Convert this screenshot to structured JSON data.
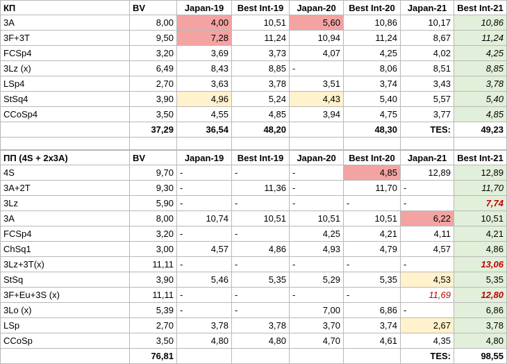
{
  "table1": {
    "header": [
      "КП",
      "BV",
      "Japan-19",
      "Best Int-19",
      "Japan-20",
      "Best Int-20",
      "Japan-21",
      "Best Int-21"
    ],
    "rows": [
      [
        "3A",
        "8,00",
        "4,00",
        "10,51",
        "5,60",
        "10,86",
        "10,17",
        "10,86"
      ],
      [
        "3F+3T",
        "9,50",
        "7,28",
        "11,24",
        "10,94",
        "11,24",
        "8,67",
        "11,24"
      ],
      [
        "FCSp4",
        "3,20",
        "3,69",
        "3,73",
        "4,07",
        "4,25",
        "4,02",
        "4,25"
      ],
      [
        "3Lz (x)",
        "6,49",
        "8,43",
        "8,85",
        "-",
        "8,06",
        "8,51",
        "8,85"
      ],
      [
        "LSp4",
        "2,70",
        "3,63",
        "3,78",
        "3,51",
        "3,74",
        "3,43",
        "3,78"
      ],
      [
        "StSq4",
        "3,90",
        "4,96",
        "5,24",
        "4,43",
        "5,40",
        "5,57",
        "5,40"
      ],
      [
        "CCoSp4",
        "3,50",
        "4,55",
        "4,85",
        "3,94",
        "4,75",
        "3,77",
        "4,85"
      ]
    ],
    "totals": [
      "",
      "37,29",
      "36,54",
      "48,20",
      "",
      "48,30",
      "TES:",
      "49,23"
    ]
  },
  "table2": {
    "header": [
      "ПП (4S + 2x3A)",
      "BV",
      "Japan-19",
      "Best Int-19",
      "Japan-20",
      "Best Int-20",
      "Japan-21",
      "Best Int-21"
    ],
    "rows": [
      [
        "4S",
        "9,70",
        "-",
        "-",
        "-",
        "4,85",
        "12,89",
        "12,89"
      ],
      [
        "3A+2T",
        "9,30",
        "-",
        "11,36",
        "-",
        "11,70",
        "-",
        "11,70"
      ],
      [
        "3Lz",
        "5,90",
        "-",
        "-",
        "-",
        "-",
        "-",
        "7,74"
      ],
      [
        "3A",
        "8,00",
        "10,74",
        "10,51",
        "10,51",
        "10,51",
        "6,22",
        "10,51"
      ],
      [
        "FCSp4",
        "3,20",
        "-",
        "-",
        "4,25",
        "4,21",
        "4,11",
        "4,21"
      ],
      [
        "ChSq1",
        "3,00",
        "4,57",
        "4,86",
        "4,93",
        "4,79",
        "4,57",
        "4,86"
      ],
      [
        "3Lz+3T(x)",
        "11,11",
        "-",
        "-",
        "-",
        "-",
        "-",
        "13,06"
      ],
      [
        "StSq",
        "3,90",
        "5,46",
        "5,35",
        "5,29",
        "5,35",
        "4,53",
        "5,35"
      ],
      [
        "3F+Eu+3S (x)",
        "11,11",
        "-",
        "-",
        "-",
        "-",
        "11,69",
        "12,80"
      ],
      [
        "3Lo (x)",
        "5,39",
        "-",
        "-",
        "7,00",
        "6,86",
        "-",
        "6,86"
      ],
      [
        "LSp",
        "2,70",
        "3,78",
        "3,78",
        "3,70",
        "3,74",
        "2,67",
        "3,78"
      ],
      [
        "CCoSp",
        "3,50",
        "4,80",
        "4,80",
        "4,70",
        "4,61",
        "4,35",
        "4,80"
      ]
    ],
    "totals": [
      "",
      "76,81",
      "",
      "",
      "",
      "",
      "TES:",
      "98,55"
    ]
  }
}
